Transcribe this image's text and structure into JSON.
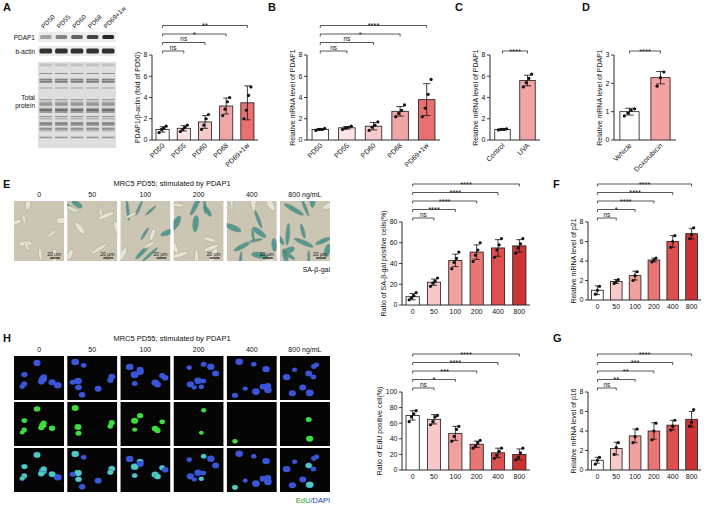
{
  "chart_data": [
    {
      "type": "bar",
      "y_label": "PDAP1/β-actin (fold of PD50)",
      "categories": [
        "PD50",
        "PD55",
        "PD60",
        "PD68",
        "PD69+1w"
      ],
      "values": [
        1.0,
        1.1,
        1.7,
        3.2,
        3.5
      ],
      "errors": [
        0.25,
        0.25,
        0.6,
        0.75,
        1.6
      ],
      "points": [
        [
          0.7,
          1.0,
          1.1,
          1.3
        ],
        [
          0.8,
          1.0,
          1.2,
          1.4
        ],
        [
          1.0,
          1.4,
          2.0,
          2.4
        ],
        [
          2.3,
          2.9,
          3.6,
          4.0
        ],
        [
          2.0,
          2.8,
          4.2,
          5.0
        ]
      ],
      "colors": [
        "#ffffff",
        "#fbe3e3",
        "#f7caca",
        "#f2a5a5",
        "#e87070"
      ],
      "annotations": [
        null,
        "ns",
        "ns",
        "*",
        "**"
      ],
      "ylim": [
        0,
        8
      ],
      "yticks": [
        0,
        2,
        4,
        6,
        8
      ]
    },
    {
      "type": "bar",
      "panel": "B",
      "y_label": "Relative mRNA level of PDAP1",
      "categories": [
        "PD50",
        "PD55",
        "PD60",
        "PD68",
        "PD69+1w"
      ],
      "values": [
        1.0,
        1.15,
        1.3,
        2.7,
        3.8
      ],
      "errors": [
        0.08,
        0.12,
        0.35,
        0.45,
        1.5
      ],
      "points": [
        [
          0.9,
          1.0,
          1.0,
          1.1
        ],
        [
          1.0,
          1.1,
          1.2,
          1.3
        ],
        [
          0.9,
          1.2,
          1.4,
          1.7
        ],
        [
          2.2,
          2.5,
          2.8,
          3.3
        ],
        [
          2.2,
          3.0,
          4.3,
          5.7
        ]
      ],
      "colors": [
        "#ffffff",
        "#fbe3e3",
        "#f7caca",
        "#f2a5a5",
        "#e87070"
      ],
      "annotations": [
        null,
        "ns",
        "ns",
        "*",
        "****"
      ],
      "ylim": [
        0,
        8
      ],
      "yticks": [
        0,
        2,
        4,
        6,
        8
      ]
    },
    {
      "type": "bar",
      "panel": "C",
      "y_label": "Relative mRNA level of PDAP1",
      "categories": [
        "Control",
        "UVA"
      ],
      "values": [
        1.0,
        5.6
      ],
      "errors": [
        0.05,
        0.5
      ],
      "points": [
        [
          0.95,
          1.0,
          1.0,
          1.05
        ],
        [
          5.0,
          5.4,
          5.8,
          6.2
        ]
      ],
      "colors": [
        "#ffffff",
        "#f4a3a3"
      ],
      "annotations": [
        null,
        "****"
      ],
      "ylim": [
        0,
        8
      ],
      "yticks": [
        0,
        2,
        4,
        6,
        8
      ]
    },
    {
      "type": "bar",
      "panel": "D",
      "y_label": "Relative mRNA level of PDAP1",
      "categories": [
        "Vehicle",
        "Doxorubicin"
      ],
      "values": [
        1.0,
        2.2
      ],
      "errors": [
        0.12,
        0.22
      ],
      "points": [
        [
          0.85,
          0.95,
          1.05,
          1.1
        ],
        [
          1.9,
          2.2,
          2.4
        ]
      ],
      "colors": [
        "#ffffff",
        "#f4a3a3"
      ],
      "annotations": [
        null,
        "****"
      ],
      "ylim": [
        0,
        3
      ],
      "yticks": [
        0,
        1,
        2,
        3
      ]
    },
    {
      "type": "bar",
      "y_label": "Ratio of SA-β-gal positive cells(%)",
      "categories": [
        "0",
        "50",
        "100",
        "200",
        "400",
        "800"
      ],
      "values": [
        8,
        22,
        43,
        51,
        55,
        57
      ],
      "errors": [
        3,
        3,
        6,
        7,
        8,
        6
      ],
      "points": [
        [
          5,
          7,
          9,
          12
        ],
        [
          18,
          21,
          23,
          26
        ],
        [
          35,
          41,
          45,
          51
        ],
        [
          42,
          48,
          53,
          60
        ],
        [
          46,
          53,
          58,
          64
        ],
        [
          50,
          55,
          59,
          64
        ]
      ],
      "colors": [
        "#ffffff",
        "#f7c9c9",
        "#f2a0a0",
        "#e97575",
        "#de4f4f",
        "#cc3333"
      ],
      "annotations": [
        null,
        "ns",
        "****",
        "****",
        "****",
        "****"
      ],
      "ylim": [
        0,
        80
      ],
      "yticks": [
        0,
        20,
        40,
        60,
        80
      ]
    },
    {
      "type": "bar",
      "panel": "F",
      "y_label": "Relative mRNA level of p21",
      "categories": [
        "0",
        "50",
        "100",
        "200",
        "400",
        "800"
      ],
      "values": [
        1.0,
        1.9,
        2.5,
        4.1,
        6.0,
        6.8
      ],
      "errors": [
        0.45,
        0.2,
        0.45,
        0.2,
        0.6,
        0.55
      ],
      "points": [
        [
          0.6,
          1.0,
          1.4
        ],
        [
          1.7,
          1.9,
          2.1
        ],
        [
          2.0,
          2.5,
          2.9
        ],
        [
          3.9,
          4.1,
          4.3
        ],
        [
          5.4,
          6.0,
          6.6
        ],
        [
          6.3,
          6.7,
          7.4
        ]
      ],
      "colors": [
        "#ffffff",
        "#f7c9c9",
        "#f2a0a0",
        "#e97575",
        "#de4f4f",
        "#cc3333"
      ],
      "annotations": [
        null,
        "ns",
        "*",
        "****",
        "****",
        "****"
      ],
      "ylim": [
        0,
        8
      ],
      "yticks": [
        0,
        2,
        4,
        6,
        8
      ]
    },
    {
      "type": "bar",
      "panel": "G",
      "y_label": "Relative mRNA level of p16",
      "categories": [
        "0",
        "50",
        "100",
        "200",
        "400",
        "800"
      ],
      "values": [
        1.0,
        2.2,
        3.5,
        4.0,
        4.6,
        5.2
      ],
      "errors": [
        0.3,
        0.65,
        0.7,
        0.85,
        0.5,
        0.8
      ],
      "points": [
        [
          0.6,
          1.0,
          1.3
        ],
        [
          1.6,
          2.3,
          2.8
        ],
        [
          2.8,
          3.4,
          4.2
        ],
        [
          3.1,
          4.0,
          4.8
        ],
        [
          4.1,
          4.5,
          5.1
        ],
        [
          4.5,
          4.9,
          6.2
        ]
      ],
      "colors": [
        "#ffffff",
        "#f7c9c9",
        "#f2a0a0",
        "#e97575",
        "#de4f4f",
        "#cc3333"
      ],
      "annotations": [
        null,
        "ns",
        "**",
        "**",
        "***",
        "****"
      ],
      "ylim": [
        0,
        8
      ],
      "yticks": [
        0,
        2,
        4,
        6,
        8
      ]
    },
    {
      "type": "bar",
      "y_label": "Ratio of EdU positive cell(%)",
      "categories": [
        "0",
        "50",
        "100",
        "200",
        "400",
        "800"
      ],
      "values": [
        70,
        65,
        47,
        33,
        22,
        20
      ],
      "errors": [
        6,
        6,
        9,
        4,
        6,
        7
      ],
      "points": [
        [
          62,
          68,
          72,
          76
        ],
        [
          58,
          62,
          68,
          70
        ],
        [
          37,
          43,
          52,
          56
        ],
        [
          28,
          31,
          35,
          38
        ],
        [
          15,
          19,
          24,
          28
        ],
        [
          13,
          16,
          22,
          28
        ]
      ],
      "colors": [
        "#ffffff",
        "#f7c9c9",
        "#f2a0a0",
        "#e97575",
        "#de4f4f",
        "#cc3333"
      ],
      "annotations": [
        null,
        "ns",
        "*",
        "***",
        "****",
        "****"
      ],
      "ylim": [
        0,
        100
      ],
      "yticks": [
        0,
        20,
        40,
        60,
        80,
        100
      ]
    }
  ],
  "blot": {
    "panel": "A",
    "lanes": [
      "PD50",
      "PD55",
      "PD60",
      "PD68",
      "PD69+1w"
    ],
    "rows": [
      "PDAP1",
      "b-actin",
      "Total protein"
    ]
  },
  "sa_gal_images": {
    "panel": "E",
    "title": "MRC5 PD55; stimulated by PDAP1",
    "doses": [
      "0",
      "50",
      "100",
      "200",
      "400",
      "800 ng/mL"
    ],
    "scale_bar": "20 μm",
    "stain": "SA-β-gal"
  },
  "edu_images": {
    "panel": "H",
    "title": "MRC5 PD55; stimulated by PDAP1",
    "doses": [
      "0",
      "50",
      "100",
      "200",
      "400",
      "800 ng/mL"
    ],
    "stain": "EdU/DAPI"
  }
}
